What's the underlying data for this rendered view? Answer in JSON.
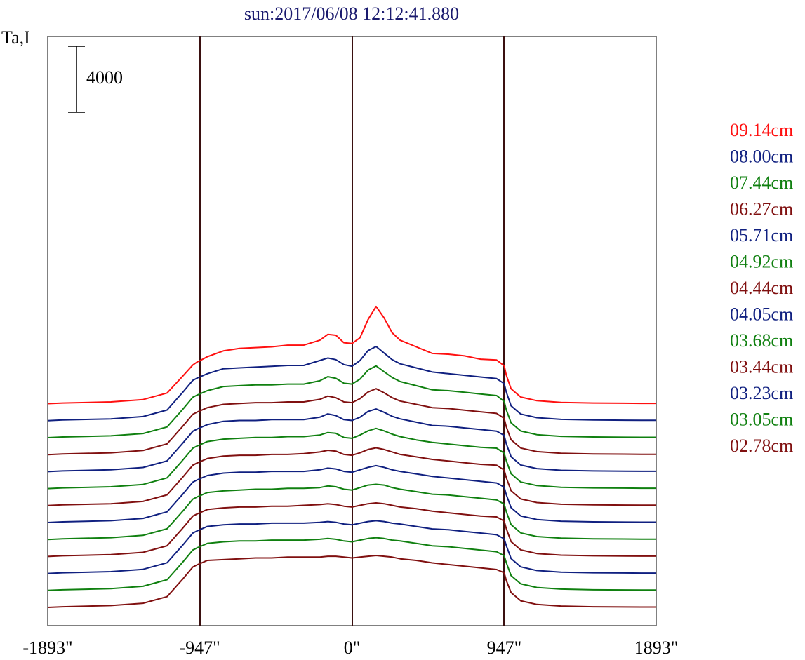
{
  "chart_data": {
    "type": "line",
    "title": "sun:2017/06/08 12:12:41.880",
    "ylabel": "Ta,I",
    "scale_bar": {
      "label": "4000",
      "value": 4000
    },
    "x_ticks": [
      "-1893\"",
      "-947\"",
      "0\"",
      "947\"",
      "1893\""
    ],
    "xlim": [
      -1893,
      1893
    ],
    "grid": false,
    "vertical_markers": [
      -947,
      0,
      947
    ],
    "legend_position": "right",
    "offset_step": 1030,
    "shape_x": [
      -1893,
      -1800,
      -1500,
      -1300,
      -1150,
      -1050,
      -990,
      -960,
      -947,
      -900,
      -800,
      -700,
      -600,
      -500,
      -400,
      -300,
      -200,
      -150,
      -100,
      -50,
      0,
      50,
      100,
      150,
      200,
      250,
      300,
      400,
      500,
      600,
      700,
      800,
      900,
      947,
      960,
      990,
      1050,
      1150,
      1300,
      1500,
      1800,
      1893
    ],
    "series": [
      {
        "name": "09.14cm",
        "color": "#ff1010",
        "y": [
          0,
          40,
          110,
          250,
          650,
          1700,
          2350,
          2550,
          2600,
          2850,
          3200,
          3350,
          3400,
          3450,
          3550,
          3550,
          3850,
          4200,
          4150,
          3700,
          3650,
          4000,
          5100,
          5900,
          5200,
          4300,
          3850,
          3450,
          3050,
          3000,
          2900,
          2700,
          2650,
          2300,
          1750,
          900,
          400,
          180,
          80,
          40,
          20,
          20
        ]
      },
      {
        "name": "08.00cm",
        "color": "#102080",
        "y": [
          0,
          40,
          110,
          250,
          650,
          1750,
          2450,
          2600,
          2650,
          2850,
          3150,
          3200,
          3250,
          3300,
          3350,
          3350,
          3650,
          3800,
          3700,
          3400,
          3300,
          3650,
          4250,
          4500,
          4100,
          3700,
          3450,
          3200,
          2950,
          2850,
          2750,
          2650,
          2550,
          2250,
          1750,
          900,
          400,
          180,
          80,
          40,
          20,
          20
        ]
      },
      {
        "name": "07.44cm",
        "color": "#108010",
        "y": [
          0,
          40,
          110,
          250,
          650,
          1750,
          2450,
          2600,
          2650,
          2850,
          3100,
          3150,
          3200,
          3200,
          3250,
          3250,
          3450,
          3700,
          3600,
          3300,
          3250,
          3550,
          4100,
          4350,
          4000,
          3650,
          3400,
          3150,
          2900,
          2850,
          2750,
          2650,
          2550,
          2200,
          1700,
          900,
          400,
          180,
          80,
          40,
          20,
          20
        ]
      },
      {
        "name": "06.27cm",
        "color": "#801010",
        "y": [
          0,
          40,
          110,
          250,
          650,
          1750,
          2450,
          2600,
          2650,
          2850,
          3050,
          3100,
          3150,
          3150,
          3200,
          3200,
          3350,
          3550,
          3450,
          3200,
          3150,
          3400,
          3800,
          4000,
          3750,
          3450,
          3250,
          3050,
          2850,
          2800,
          2700,
          2600,
          2500,
          2200,
          1700,
          900,
          400,
          180,
          80,
          40,
          20,
          20
        ]
      },
      {
        "name": "05.71cm",
        "color": "#102080",
        "y": [
          0,
          40,
          110,
          250,
          650,
          1750,
          2450,
          2600,
          2650,
          2850,
          3050,
          3100,
          3100,
          3150,
          3150,
          3150,
          3300,
          3500,
          3400,
          3150,
          3100,
          3300,
          3650,
          3800,
          3600,
          3350,
          3200,
          3000,
          2800,
          2750,
          2650,
          2550,
          2450,
          2200,
          1700,
          900,
          400,
          180,
          80,
          40,
          20,
          20
        ]
      },
      {
        "name": "04.92cm",
        "color": "#108010",
        "y": [
          0,
          40,
          110,
          250,
          650,
          1750,
          2450,
          2600,
          2650,
          2850,
          3000,
          3050,
          3100,
          3100,
          3150,
          3150,
          3250,
          3400,
          3350,
          3100,
          3050,
          3250,
          3500,
          3650,
          3500,
          3300,
          3150,
          2950,
          2800,
          2700,
          2600,
          2500,
          2450,
          2150,
          1700,
          900,
          400,
          180,
          80,
          40,
          20,
          20
        ]
      },
      {
        "name": "04.44cm",
        "color": "#801010",
        "y": [
          0,
          40,
          110,
          250,
          650,
          1750,
          2450,
          2600,
          2650,
          2850,
          3000,
          3050,
          3050,
          3100,
          3100,
          3150,
          3250,
          3350,
          3300,
          3100,
          3050,
          3200,
          3400,
          3500,
          3400,
          3250,
          3100,
          2950,
          2800,
          2700,
          2600,
          2500,
          2450,
          2150,
          1700,
          900,
          400,
          180,
          80,
          40,
          20,
          20
        ]
      },
      {
        "name": "04.05cm",
        "color": "#102080",
        "y": [
          0,
          40,
          110,
          250,
          650,
          1750,
          2450,
          2600,
          2650,
          2850,
          3000,
          3050,
          3050,
          3100,
          3100,
          3100,
          3200,
          3300,
          3250,
          3100,
          3050,
          3200,
          3350,
          3450,
          3350,
          3200,
          3100,
          2950,
          2800,
          2700,
          2600,
          2500,
          2400,
          2150,
          1700,
          900,
          400,
          180,
          80,
          40,
          20,
          20
        ]
      },
      {
        "name": "03.68cm",
        "color": "#108010",
        "y": [
          0,
          40,
          110,
          250,
          650,
          1750,
          2450,
          2600,
          2650,
          2850,
          2950,
          3000,
          3050,
          3050,
          3100,
          3100,
          3150,
          3250,
          3200,
          3050,
          3000,
          3150,
          3300,
          3350,
          3300,
          3150,
          3050,
          2900,
          2750,
          2700,
          2600,
          2500,
          2400,
          2150,
          1700,
          900,
          400,
          180,
          80,
          40,
          20,
          20
        ]
      },
      {
        "name": "03.44cm",
        "color": "#801010",
        "y": [
          0,
          40,
          110,
          250,
          650,
          1750,
          2450,
          2600,
          2650,
          2850,
          2950,
          3000,
          3000,
          3050,
          3050,
          3100,
          3150,
          3200,
          3150,
          3050,
          3000,
          3100,
          3200,
          3250,
          3200,
          3100,
          3000,
          2900,
          2750,
          2650,
          2550,
          2450,
          2400,
          2150,
          1700,
          900,
          400,
          180,
          80,
          40,
          20,
          20
        ]
      },
      {
        "name": "03.23cm",
        "color": "#102080",
        "y": [
          0,
          40,
          110,
          250,
          650,
          1750,
          2450,
          2600,
          2650,
          2850,
          2950,
          3000,
          3000,
          3050,
          3050,
          3050,
          3100,
          3150,
          3100,
          3000,
          2950,
          3050,
          3150,
          3200,
          3150,
          3050,
          3000,
          2850,
          2700,
          2650,
          2550,
          2450,
          2350,
          2100,
          1700,
          900,
          400,
          180,
          80,
          40,
          20,
          20
        ]
      },
      {
        "name": "03.05cm",
        "color": "#108010",
        "y": [
          0,
          40,
          110,
          250,
          650,
          1750,
          2450,
          2600,
          2650,
          2850,
          2950,
          3000,
          3000,
          3050,
          3050,
          3050,
          3100,
          3150,
          3100,
          3000,
          2950,
          3050,
          3150,
          3200,
          3150,
          3050,
          3000,
          2850,
          2700,
          2650,
          2550,
          2450,
          2350,
          2100,
          1700,
          900,
          400,
          180,
          80,
          40,
          20,
          20
        ]
      },
      {
        "name": "02.78cm",
        "color": "#801010",
        "y": [
          0,
          40,
          110,
          250,
          650,
          1750,
          2450,
          2600,
          2650,
          2850,
          2900,
          2950,
          3000,
          3000,
          3050,
          3050,
          3050,
          3100,
          3100,
          3050,
          3000,
          3050,
          3100,
          3150,
          3100,
          3050,
          2950,
          2850,
          2700,
          2600,
          2500,
          2400,
          2300,
          2100,
          1650,
          900,
          400,
          180,
          80,
          40,
          20,
          20
        ]
      }
    ]
  }
}
